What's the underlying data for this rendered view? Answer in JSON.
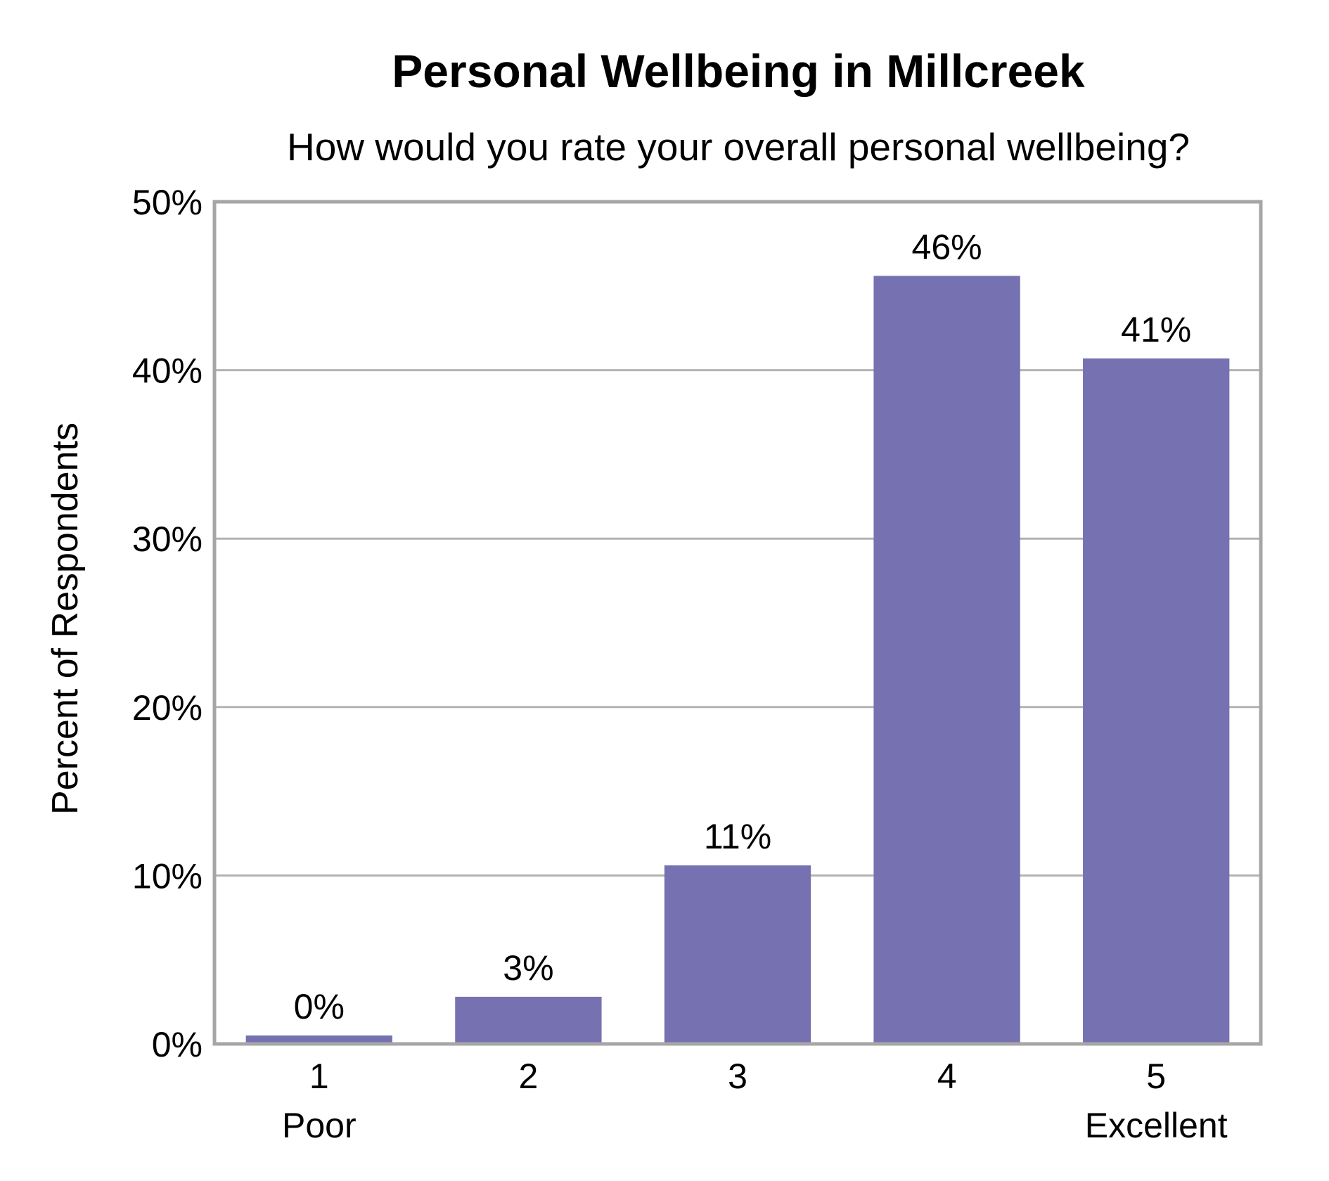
{
  "chart_data": {
    "type": "bar",
    "title": "Personal Wellbeing in Millcreek",
    "subtitle": "How would you rate your overall personal wellbeing?",
    "ylabel": "Percent of Respondents",
    "xlabel": "",
    "ylim": [
      0,
      50
    ],
    "yticks": [
      0,
      10,
      20,
      30,
      40,
      50
    ],
    "ytick_labels": [
      "0%",
      "10%",
      "20%",
      "30%",
      "40%",
      "50%"
    ],
    "grid": true,
    "legend": false,
    "categories": [
      "1",
      "2",
      "3",
      "4",
      "5"
    ],
    "category_sublabels": [
      "Poor",
      "",
      "",
      "",
      "Excellent"
    ],
    "values": [
      0.5,
      2.8,
      10.6,
      45.6,
      40.7
    ],
    "data_labels": [
      "0%",
      "3%",
      "11%",
      "46%",
      "41%"
    ],
    "bar_color": "#7672b1",
    "grid_color": "#b3b3b3",
    "frame_color": "#a6a6a6"
  }
}
